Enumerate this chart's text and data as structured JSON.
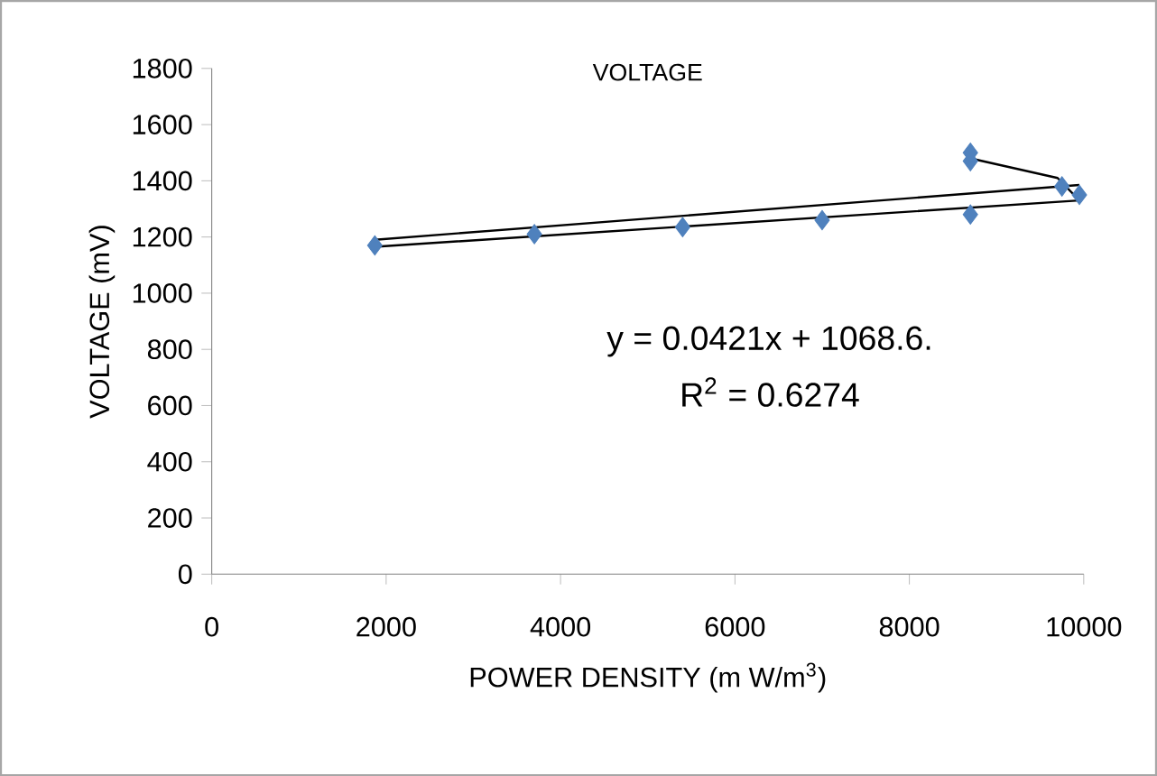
{
  "chart_data": {
    "type": "scatter",
    "title": "VOLTAGE",
    "xlabel": "POWER DENSITY (m W/m$^{3}$)",
    "ylabel": "VOLTAGE (mV)",
    "annotations": [
      "y = 0.0421x + 1068.6.",
      "R$^{2}$ = 0.6274"
    ],
    "series": [
      {
        "marker": "diamond",
        "color": "#4f81bd",
        "x": [
          1870,
          3700,
          5400,
          7000,
          8700,
          8700,
          8700,
          9750,
          9950
        ],
        "values": [
          1170,
          1210,
          1235,
          1260,
          1280,
          1470,
          1500,
          1380,
          1350
        ]
      },
      {
        "type": "line",
        "marker": "none",
        "color": "#000000",
        "x": [
          8700,
          9700,
          9950,
          1870
        ],
        "values": [
          1480,
          1410,
          1330,
          1165
        ]
      },
      {
        "type": "line",
        "marker": "none",
        "color": "#000000",
        "x": [
          1870,
          9950
        ],
        "values": [
          1190,
          1385
        ]
      }
    ],
    "xlim": [
      0,
      10000
    ],
    "ylim": [
      0,
      1800
    ],
    "xticks": [
      0,
      2000,
      4000,
      6000,
      8000,
      10000
    ],
    "yticks": [
      0,
      200,
      400,
      600,
      800,
      1000,
      1200,
      1400,
      1600,
      1800
    ],
    "grid": false
  }
}
